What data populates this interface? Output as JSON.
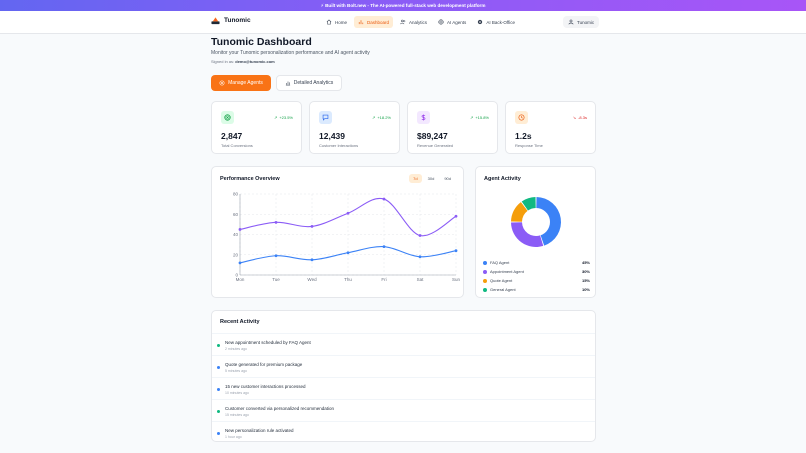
{
  "banner": {
    "text": "⚡ Built with Bolt.new - The AI-powered full-stack web development platform"
  },
  "brand": {
    "name": "Tunomic"
  },
  "nav": [
    {
      "label": "Home",
      "icon": "home-icon",
      "active": false
    },
    {
      "label": "Dashboard",
      "icon": "bar-chart-icon",
      "active": true
    },
    {
      "label": "Analytics",
      "icon": "users-icon",
      "active": false
    },
    {
      "label": "AI Agents",
      "icon": "globe-icon",
      "active": false
    },
    {
      "label": "AI Back-Office",
      "icon": "settings-icon",
      "active": false
    }
  ],
  "user": {
    "label": "Tunomic"
  },
  "header": {
    "title": "Tunomic Dashboard",
    "subtitle": "Monitor your Tunomic personalization performance and AI agent activity",
    "signed_prefix": "Signed in as:",
    "signed_email": "demo@tunomic.com"
  },
  "actions": {
    "primary": "Manage Agents",
    "secondary": "Detailed Analytics"
  },
  "stats": [
    {
      "value": "2,847",
      "label": "Total Conversions",
      "change": "+23.5%",
      "direction": "up",
      "icon": "target-icon",
      "color": "#16a34a",
      "bg": "#dcfce7"
    },
    {
      "value": "12,439",
      "label": "Customer Interactions",
      "change": "+18.2%",
      "direction": "up",
      "icon": "message-icon",
      "color": "#2563eb",
      "bg": "#dbeafe"
    },
    {
      "value": "$89,247",
      "label": "Revenue Generated",
      "change": "+15.8%",
      "direction": "up",
      "icon": "dollar-icon",
      "color": "#9333ea",
      "bg": "#f3e8ff"
    },
    {
      "value": "1.2s",
      "label": "Response Time",
      "change": "-8.3s",
      "direction": "down",
      "icon": "clock-icon",
      "color": "#ea580c",
      "bg": "#ffedd5"
    }
  ],
  "performance": {
    "title": "Performance Overview",
    "ranges": [
      {
        "label": "7d",
        "active": true
      },
      {
        "label": "30d",
        "active": false
      },
      {
        "label": "90d",
        "active": false
      }
    ]
  },
  "chart_data": {
    "type": "line",
    "title": "Performance Overview",
    "categories": [
      "Mon",
      "Tue",
      "Wed",
      "Thu",
      "Fri",
      "Sat",
      "Sun"
    ],
    "series": [
      {
        "values": [
          45,
          52,
          48,
          61,
          75,
          39,
          58
        ],
        "color": "#8b5cf6"
      },
      {
        "values": [
          12,
          19,
          15,
          22,
          28,
          18,
          24
        ],
        "color": "#3b82f6"
      }
    ],
    "yticks": [
      0,
      20,
      40,
      60,
      80
    ],
    "ylim": [
      0,
      80
    ],
    "grid": true
  },
  "agent_activity": {
    "title": "Agent Activity",
    "slices": [
      {
        "name": "FAQ Agent",
        "value": 45,
        "label": "45%",
        "color": "#3b82f6"
      },
      {
        "name": "Appointment Agent",
        "value": 30,
        "label": "30%",
        "color": "#8b5cf6"
      },
      {
        "name": "Quote Agent",
        "value": 15,
        "label": "15%",
        "color": "#f59e0b"
      },
      {
        "name": "General Agent",
        "value": 10,
        "label": "10%",
        "color": "#10b981"
      }
    ]
  },
  "activity": {
    "title": "Recent Activity",
    "items": [
      {
        "text": "New appointment scheduled by FAQ Agent",
        "time": "2 minutes ago",
        "color": "#10b981"
      },
      {
        "text": "Quote generated for premium package",
        "time": "5 minutes ago",
        "color": "#3b82f6"
      },
      {
        "text": "15 new customer interactions processed",
        "time": "10 minutes ago",
        "color": "#3b82f6"
      },
      {
        "text": "Customer converted via personalized recommendation",
        "time": "15 minutes ago",
        "color": "#10b981"
      },
      {
        "text": "New personalization rule activated",
        "time": "1 hour ago",
        "color": "#3b82f6"
      }
    ]
  }
}
